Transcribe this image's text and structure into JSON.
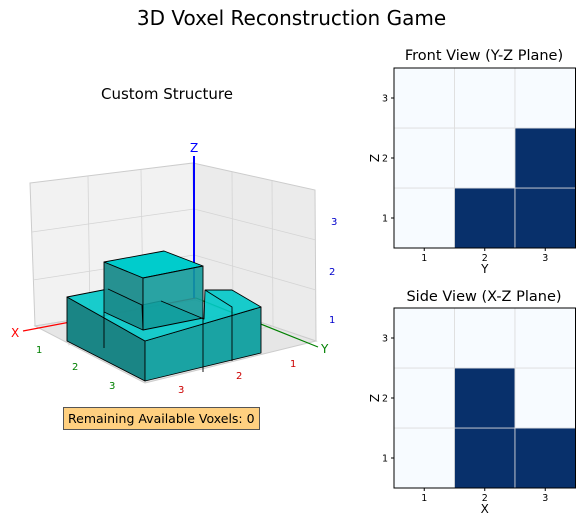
{
  "title": "3D Voxel Reconstruction Game",
  "structure_view": {
    "title": "Custom Structure",
    "axis_names": {
      "x": "X",
      "y": "Y",
      "z": "Z"
    },
    "x_ticks": [
      "1",
      "2",
      "3"
    ],
    "y_ticks": [
      "1",
      "2",
      "3"
    ],
    "z_ticks": [
      "1",
      "2",
      "3"
    ],
    "voxels": [
      [
        1,
        1,
        1
      ],
      [
        2,
        1,
        1
      ],
      [
        1,
        2,
        1
      ],
      [
        2,
        2,
        1
      ],
      [
        3,
        2,
        1
      ],
      [
        2,
        2,
        2
      ]
    ],
    "voxel_color": "#00cccc"
  },
  "remaining_label": "Remaining Available Voxels: 0",
  "front_view": {
    "title": "Front View (Y-Z Plane)",
    "xlabel": "Y",
    "ylabel": "Z",
    "x_ticks": [
      "1",
      "2",
      "3"
    ],
    "y_ticks": [
      "1",
      "2",
      "3"
    ],
    "filled": [
      [
        2,
        1
      ],
      [
        3,
        1
      ],
      [
        3,
        2
      ]
    ]
  },
  "side_view": {
    "title": "Side View (X-Z Plane)",
    "xlabel": "X",
    "ylabel": "Z",
    "x_ticks": [
      "1",
      "2",
      "3"
    ],
    "y_ticks": [
      "1",
      "2",
      "3"
    ],
    "filled": [
      [
        2,
        1
      ],
      [
        3,
        1
      ],
      [
        2,
        2
      ]
    ]
  },
  "colors": {
    "filled": "#08306b",
    "empty": "#f7fbff",
    "x_axis": "#ff0000",
    "y_axis": "#008000",
    "z_axis": "#0000ff"
  }
}
